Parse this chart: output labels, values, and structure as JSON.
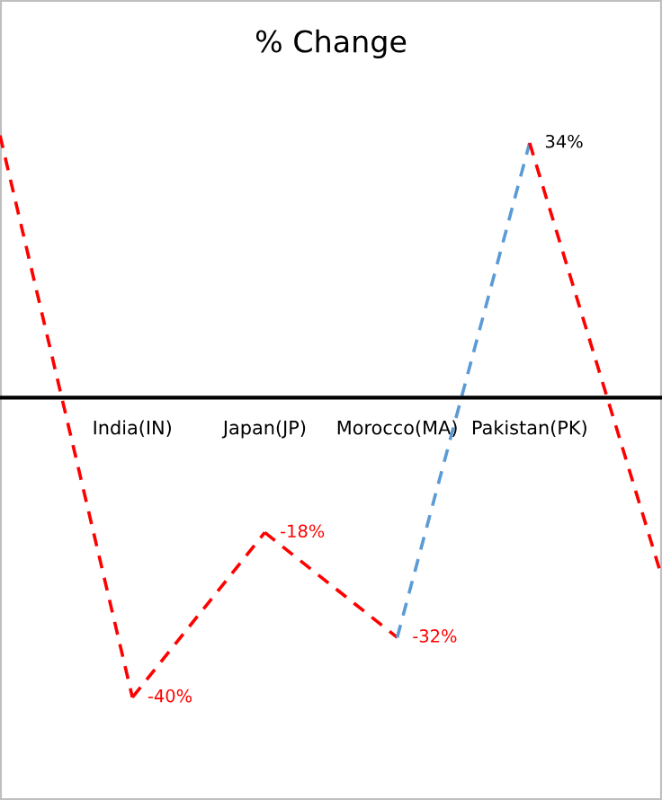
{
  "chart_data": {
    "type": "line",
    "title": "% Change",
    "categories": [
      null,
      "India(IN)",
      "Japan(JP)",
      "Morocco(MA)",
      "Pakistan(PK)",
      null
    ],
    "series": [
      {
        "values": [
          35,
          -40,
          -18,
          -32,
          34,
          -24
        ],
        "colors": [
          "#ff0000",
          "#ff0000",
          "#ff0000",
          "#ff0000",
          "#5b9bd5",
          "#ff0000"
        ],
        "value_labels": [
          null,
          "-40%",
          "-18%",
          "-32%",
          "34%",
          null
        ]
      }
    ],
    "tick_labels": "x",
    "grid": false,
    "legend": false,
    "marker": "none",
    "line_style": "dashed"
  }
}
